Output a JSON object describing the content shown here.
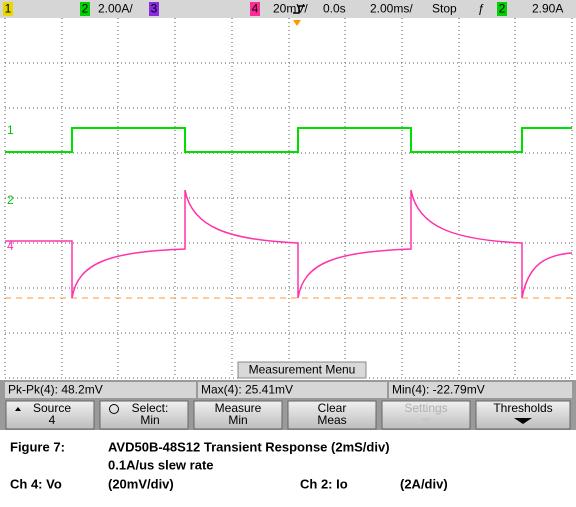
{
  "header": {
    "ch1": "1",
    "ch2": "2",
    "ch2_scale": "2.00A/",
    "ch3": "3",
    "ch4": "4",
    "ch4_scale": "20mV/",
    "delay": "0.0s",
    "timebase": "2.00ms/",
    "run_state": "Stop",
    "trigger_slope": "ƒ",
    "trigger_source": "2",
    "trigger_level": "2.90A"
  },
  "markers": {
    "ch1": "1",
    "ch2": "2",
    "ch4": "4"
  },
  "menu_title": "Measurement Menu",
  "measurements": [
    "Pk-Pk(4): 48.2mV",
    "Max(4): 25.41mV",
    "Min(4): -22.79mV"
  ],
  "softkeys": [
    {
      "line1": "Source",
      "line2": "4"
    },
    {
      "line1": "Select:",
      "line2": "Min"
    },
    {
      "line1": "Measure",
      "line2": "Min"
    },
    {
      "line1": "Clear",
      "line2": "Meas"
    },
    {
      "line1": "Settings"
    },
    {
      "line1": "Thresholds"
    }
  ],
  "caption": {
    "figure": "Figure 7:",
    "title": "AVD50B-48S12 Transient Response (2mS/div)",
    "subtitle": "0.1A/us slew rate",
    "ch4_label": "Ch 4: Vo",
    "ch4_scale": "(20mV/div)",
    "ch2_label": "Ch 2: Io",
    "ch2_scale": "(2A/div)"
  }
}
